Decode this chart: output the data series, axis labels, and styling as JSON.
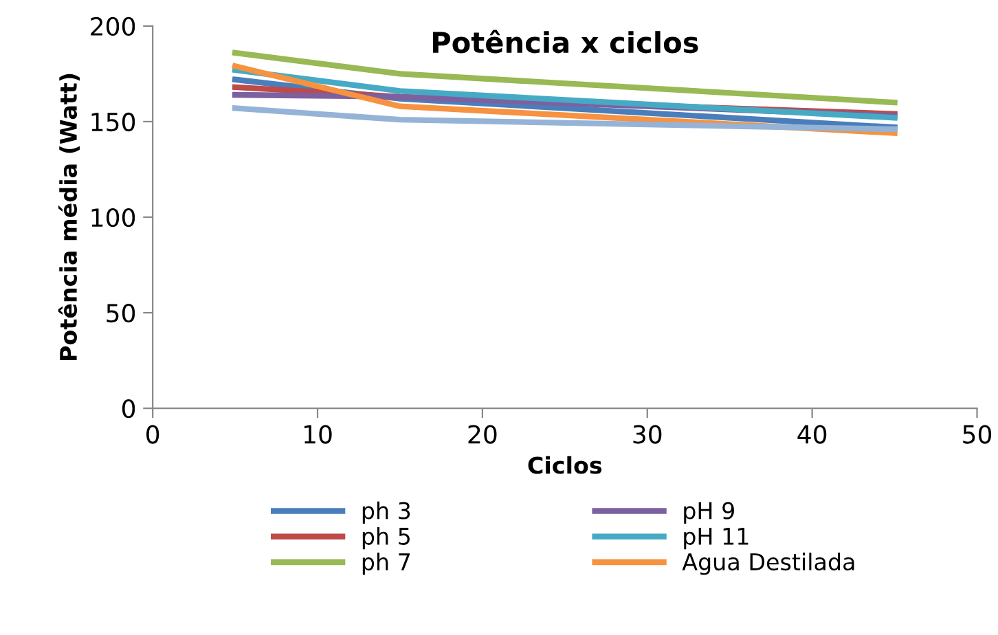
{
  "chart_data": {
    "type": "line",
    "title": "Potência x ciclos",
    "xlabel": "Ciclos",
    "ylabel": "Potência média (Watt)",
    "x": [
      5,
      15,
      45
    ],
    "xlim": [
      0,
      50
    ],
    "xticks": [
      0,
      10,
      20,
      30,
      40,
      50
    ],
    "ylim": [
      0,
      200
    ],
    "yticks": [
      0,
      50,
      100,
      150,
      200
    ],
    "grid": false,
    "legend": "bottom",
    "marker": "none",
    "series": [
      {
        "name": "ph 3",
        "color": "#4a7ebb",
        "values": [
          172,
          162,
          147
        ]
      },
      {
        "name": "ph 5",
        "color": "#be4b48",
        "values": [
          168,
          163,
          154
        ]
      },
      {
        "name": "ph 7",
        "color": "#98b954",
        "values": [
          186,
          175,
          160
        ]
      },
      {
        "name": "pH 9",
        "color": "#7d60a0",
        "values": [
          164,
          163,
          153
        ]
      },
      {
        "name": "pH 11",
        "color": "#46aac5",
        "values": [
          177,
          166,
          152
        ]
      },
      {
        "name": "Agua Destilada",
        "color": "#f69240",
        "values": [
          179,
          158,
          144
        ]
      },
      {
        "color": "#95b3d7",
        "values": [
          157,
          151,
          146
        ]
      }
    ]
  }
}
